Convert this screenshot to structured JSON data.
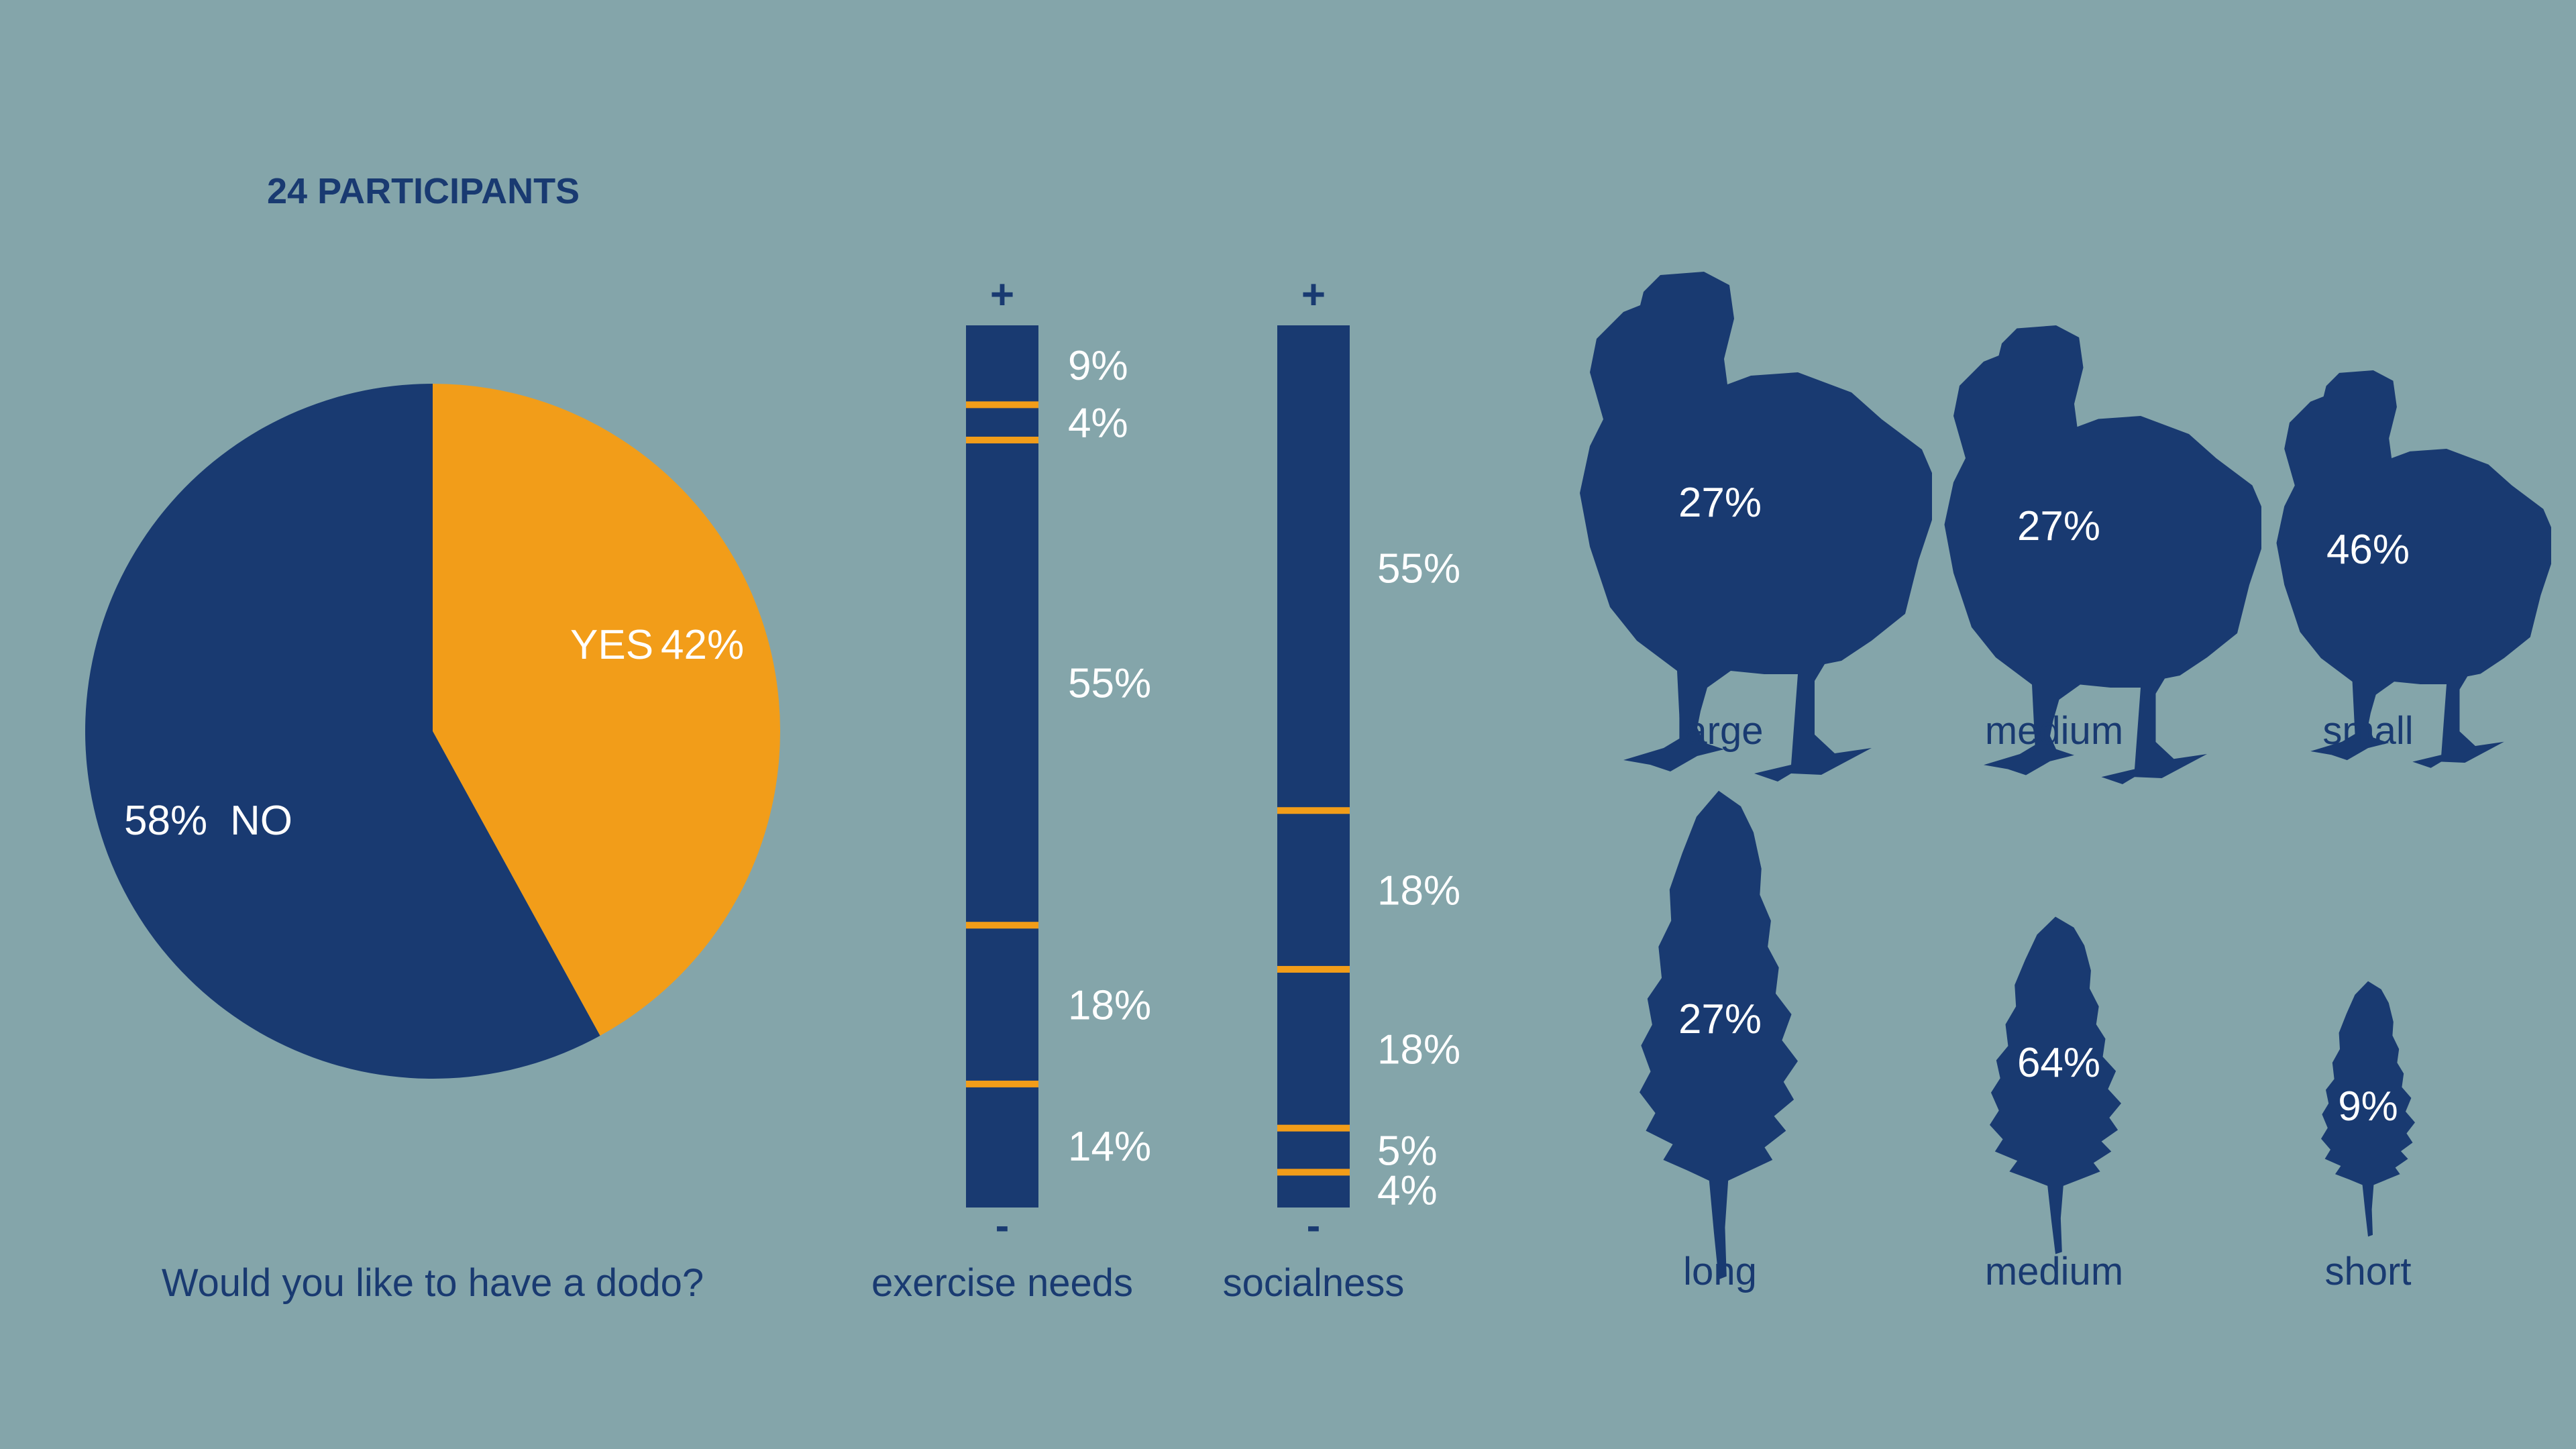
{
  "header": {
    "title": "24 PARTICIPANTS"
  },
  "colors": {
    "background": "#84a5aa",
    "navy": "#193a71",
    "orange": "#f29d19",
    "white": "#ffffff"
  },
  "chart_data": [
    {
      "type": "pie",
      "title": "Would you like to have a dodo?",
      "slices": [
        {
          "label": "YES",
          "value": 42,
          "display": "42%",
          "color": "#f29d19"
        },
        {
          "label": "NO",
          "value": 58,
          "display": "58%",
          "color": "#193a71"
        }
      ]
    },
    {
      "type": "bar",
      "subtype": "stacked-scale",
      "title": "exercise needs",
      "top_label": "+",
      "bottom_label": "-",
      "segments": [
        {
          "value": 9,
          "display": "9%"
        },
        {
          "value": 4,
          "display": "4%"
        },
        {
          "value": 55,
          "display": "55%"
        },
        {
          "value": 18,
          "display": "18%"
        },
        {
          "value": 14,
          "display": "14%"
        }
      ]
    },
    {
      "type": "bar",
      "subtype": "stacked-scale",
      "title": "socialness",
      "top_label": "+",
      "bottom_label": "-",
      "segments": [
        {
          "value": 55,
          "display": "55%"
        },
        {
          "value": 18,
          "display": "18%"
        },
        {
          "value": 18,
          "display": "18%"
        },
        {
          "value": 5,
          "display": "5%"
        },
        {
          "value": 4,
          "display": "4%"
        }
      ]
    },
    {
      "type": "pictogram",
      "icon": "dodo-icon",
      "categories": [
        "large",
        "medium",
        "small"
      ],
      "values": [
        27,
        27,
        46
      ],
      "displays": [
        "27%",
        "27%",
        "46%"
      ]
    },
    {
      "type": "pictogram",
      "icon": "feather-icon",
      "categories": [
        "long",
        "medium",
        "short"
      ],
      "values": [
        27,
        64,
        9
      ],
      "displays": [
        "27%",
        "64%",
        "9%"
      ]
    }
  ]
}
